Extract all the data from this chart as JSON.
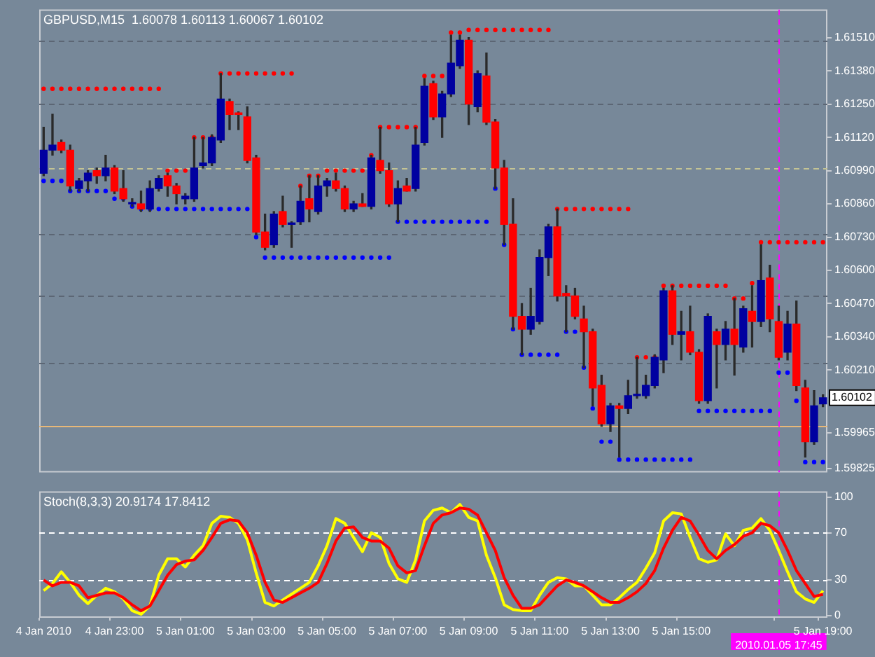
{
  "chart_data": [
    {
      "type": "candlestick",
      "title": "GBPUSD,M15  1.60078 1.60113 1.60067 1.60102",
      "categories": [
        "4 Jan 2010",
        null,
        null,
        null,
        null,
        null,
        null,
        null,
        "4 Jan 23:00",
        null,
        null,
        null,
        null,
        null,
        null,
        null,
        "5 Jan 01:00",
        null,
        null,
        null,
        null,
        null,
        null,
        null,
        "5 Jan 03:00",
        null,
        null,
        null,
        null,
        null,
        null,
        null,
        "5 Jan 05:00",
        null,
        null,
        null,
        null,
        null,
        null,
        null,
        "5 Jan 07:00",
        null,
        null,
        null,
        null,
        null,
        null,
        null,
        "5 Jan 09:00",
        null,
        null,
        null,
        null,
        null,
        null,
        null,
        "5 Jan 11:00",
        null,
        null,
        null,
        null,
        null,
        null,
        null,
        "5 Jan 13:00",
        null,
        null,
        null,
        null,
        null,
        null,
        null,
        "5 Jan 15:00",
        null,
        null,
        null,
        null,
        null,
        null,
        null,
        null,
        null,
        null,
        "2010.01.05 17:45",
        null,
        null,
        null,
        null,
        "5 Jan 19:00"
      ],
      "ohlc": [
        [
          1.6098,
          1.6116,
          1.6097,
          1.6107
        ],
        [
          1.6107,
          1.6121,
          1.6105,
          1.6109
        ],
        [
          1.611,
          1.6111,
          1.6106,
          1.6107
        ],
        [
          1.6107,
          1.6109,
          1.6091,
          1.6093
        ],
        [
          1.6092,
          1.6096,
          1.6091,
          1.6095
        ],
        [
          1.6095,
          1.6099,
          1.6091,
          1.6098
        ],
        [
          1.6099,
          1.61,
          1.6094,
          1.6097
        ],
        [
          1.6097,
          1.6105,
          1.6095,
          1.61
        ],
        [
          1.61,
          1.6101,
          1.609,
          1.6091
        ],
        [
          1.6092,
          1.6099,
          1.6087,
          1.6088
        ],
        [
          1.6086,
          1.6088,
          1.6085,
          1.6086
        ],
        [
          1.6086,
          1.6091,
          1.6083,
          1.6084
        ],
        [
          1.6084,
          1.6095,
          1.6083,
          1.6092
        ],
        [
          1.6092,
          1.6097,
          1.6091,
          1.6096
        ],
        [
          1.6097,
          1.6098,
          1.6089,
          1.6093
        ],
        [
          1.6093,
          1.6094,
          1.6086,
          1.609
        ],
        [
          1.6088,
          1.609,
          1.6086,
          1.6089
        ],
        [
          1.6088,
          1.6112,
          1.6087,
          1.61
        ],
        [
          1.6101,
          1.6112,
          1.61,
          1.6102
        ],
        [
          1.6102,
          1.6113,
          1.6101,
          1.6112
        ],
        [
          1.6111,
          1.6137,
          1.611,
          1.6127
        ],
        [
          1.6126,
          1.6127,
          1.6115,
          1.6121
        ],
        [
          1.6121,
          1.6122,
          1.6115,
          1.6121
        ],
        [
          1.612,
          1.6124,
          1.6102,
          1.6103
        ],
        [
          1.6104,
          1.6105,
          1.6074,
          1.6075
        ],
        [
          1.6075,
          1.6082,
          1.6068,
          1.6069
        ],
        [
          1.607,
          1.6083,
          1.6069,
          1.6082
        ],
        [
          1.6083,
          1.6089,
          1.6077,
          1.6078
        ],
        [
          1.6078,
          1.6079,
          1.6069,
          1.6078
        ],
        [
          1.6079,
          1.6093,
          1.6078,
          1.6087
        ],
        [
          1.6088,
          1.6097,
          1.6079,
          1.6084
        ],
        [
          1.6083,
          1.6097,
          1.6082,
          1.6093
        ],
        [
          1.6093,
          1.6096,
          1.6089,
          1.6095
        ],
        [
          1.6095,
          1.6098,
          1.6091,
          1.6092
        ],
        [
          1.6092,
          1.6093,
          1.6083,
          1.6084
        ],
        [
          1.6084,
          1.6087,
          1.6083,
          1.6086
        ],
        [
          1.6086,
          1.609,
          1.6085,
          1.6085
        ],
        [
          1.6085,
          1.6105,
          1.6084,
          1.6104
        ],
        [
          1.6103,
          1.6116,
          1.6098,
          1.6099
        ],
        [
          1.6099,
          1.6102,
          1.6085,
          1.6086
        ],
        [
          1.6086,
          1.6095,
          1.6079,
          1.6092
        ],
        [
          1.6093,
          1.6096,
          1.6091,
          1.6091
        ],
        [
          1.6092,
          1.6116,
          1.6091,
          1.6109
        ],
        [
          1.611,
          1.6135,
          1.6109,
          1.6132
        ],
        [
          1.6133,
          1.6134,
          1.6119,
          1.612
        ],
        [
          1.612,
          1.613,
          1.6112,
          1.6129
        ],
        [
          1.6129,
          1.6152,
          1.6128,
          1.6141
        ],
        [
          1.614,
          1.6152,
          1.6139,
          1.615
        ],
        [
          1.615,
          1.6151,
          1.6117,
          1.6125
        ],
        [
          1.6124,
          1.6138,
          1.6122,
          1.6137
        ],
        [
          1.6136,
          1.6145,
          1.6117,
          1.6118
        ],
        [
          1.6118,
          1.6119,
          1.6092,
          1.61
        ],
        [
          1.61,
          1.6103,
          1.607,
          1.6078
        ],
        [
          1.6078,
          1.6088,
          1.6037,
          1.6042
        ],
        [
          1.6042,
          1.6047,
          1.6027,
          1.6037
        ],
        [
          1.6037,
          1.6053,
          1.6035,
          1.6042
        ],
        [
          1.604,
          1.6068,
          1.6039,
          1.6065
        ],
        [
          1.6065,
          1.6078,
          1.6058,
          1.6077
        ],
        [
          1.6077,
          1.6084,
          1.6048,
          1.605
        ],
        [
          1.6051,
          1.6054,
          1.6036,
          1.605
        ],
        [
          1.605,
          1.6053,
          1.6041,
          1.6042
        ],
        [
          1.6041,
          1.6046,
          1.6022,
          1.6036
        ],
        [
          1.6036,
          1.6037,
          1.6007,
          1.6014
        ],
        [
          1.6015,
          1.6019,
          1.5999,
          1.6
        ],
        [
          1.6,
          1.6008,
          1.5997,
          1.6007
        ],
        [
          1.6007,
          1.6008,
          1.5987,
          1.6006
        ],
        [
          1.6006,
          1.6017,
          1.6004,
          1.6011
        ],
        [
          1.6011,
          1.6026,
          1.601,
          1.6011
        ],
        [
          1.6011,
          1.6019,
          1.601,
          1.6015
        ],
        [
          1.6015,
          1.6027,
          1.6014,
          1.6026
        ],
        [
          1.6025,
          1.6053,
          1.602,
          1.6052
        ],
        [
          1.6052,
          1.6054,
          1.6031,
          1.6035
        ],
        [
          1.6035,
          1.6044,
          1.6025,
          1.6036
        ],
        [
          1.6036,
          1.6046,
          1.6027,
          1.6028
        ],
        [
          1.6028,
          1.6029,
          1.6008,
          1.6009
        ],
        [
          1.6009,
          1.6043,
          1.6008,
          1.6042
        ],
        [
          1.6036,
          1.6037,
          1.6014,
          1.6031
        ],
        [
          1.6031,
          1.604,
          1.6025,
          1.6037
        ],
        [
          1.6037,
          1.6049,
          1.6019,
          1.6031
        ],
        [
          1.603,
          1.6046,
          1.6028,
          1.6045
        ],
        [
          1.6044,
          1.6054,
          1.603,
          1.604
        ],
        [
          1.604,
          1.607,
          1.6038,
          1.6056
        ],
        [
          1.6057,
          1.6062,
          1.6036,
          1.6041
        ],
        [
          1.604,
          1.6046,
          1.6025,
          1.6026
        ],
        [
          1.6028,
          1.6044,
          1.6025,
          1.6039
        ],
        [
          1.6039,
          1.6048,
          1.6013,
          1.6015
        ],
        [
          1.6014,
          1.6017,
          1.5987,
          1.5993
        ],
        [
          1.5993,
          1.6013,
          1.5992,
          1.6007
        ],
        [
          1.60078,
          1.60113,
          1.60067,
          1.60102
        ]
      ],
      "colors": [
        "#0000a0",
        "#0000a0",
        "#ff0000",
        "#ff0000",
        "#0000a0",
        "#0000a0",
        "#ff0000",
        "#0000a0",
        "#ff0000",
        "#ff0000",
        "#0000a0",
        "#ff0000",
        "#0000a0",
        "#0000a0",
        "#ff0000",
        "#ff0000",
        "#0000a0",
        "#0000a0",
        "#0000a0",
        "#0000a0",
        "#0000a0",
        "#ff0000",
        "#ff0000",
        "#ff0000",
        "#ff0000",
        "#ff0000",
        "#0000a0",
        "#ff0000",
        "#0000a0",
        "#0000a0",
        "#ff0000",
        "#0000a0",
        "#0000a0",
        "#ff0000",
        "#ff0000",
        "#0000a0",
        "#ff0000",
        "#0000a0",
        "#ff0000",
        "#ff0000",
        "#0000a0",
        "#ff0000",
        "#0000a0",
        "#0000a0",
        "#ff0000",
        "#0000a0",
        "#0000a0",
        "#0000a0",
        "#ff0000",
        "#0000a0",
        "#ff0000",
        "#ff0000",
        "#ff0000",
        "#ff0000",
        "#ff0000",
        "#0000a0",
        "#0000a0",
        "#0000a0",
        "#ff0000",
        "#ff0000",
        "#ff0000",
        "#ff0000",
        "#ff0000",
        "#ff0000",
        "#0000a0",
        "#ff0000",
        "#0000a0",
        "#0000a0",
        "#0000a0",
        "#0000a0",
        "#0000a0",
        "#ff0000",
        "#0000a0",
        "#ff0000",
        "#ff0000",
        "#0000a0",
        "#ff0000",
        "#0000a0",
        "#ff0000",
        "#0000a0",
        "#ff0000",
        "#0000a0",
        "#ff0000",
        "#ff0000",
        "#0000a0",
        "#ff0000",
        "#ff0000",
        "#0000a0",
        "#0000a0"
      ],
      "series": [
        {
          "type": "scatter",
          "color": "#ff0000",
          "values": [
            1.6131,
            1.6131,
            1.6131,
            1.6131,
            1.6131,
            1.6131,
            1.6131,
            1.6131,
            1.6131,
            1.6131,
            1.6131,
            1.6131,
            1.6131,
            1.6131,
            1.6099,
            1.6099,
            1.6099,
            1.6112,
            1.6112,
            1.6112,
            1.6137,
            1.6137,
            1.6137,
            1.6137,
            1.6137,
            1.6137,
            1.6137,
            1.6137,
            1.6137,
            1.6093,
            1.6097,
            1.6097,
            1.6099,
            1.6099,
            1.6099,
            1.6099,
            1.6099,
            1.6105,
            1.6116,
            1.6116,
            1.6116,
            1.6116,
            1.6116,
            1.6136,
            1.6136,
            1.6136,
            1.6153,
            1.6153,
            1.6154,
            1.6154,
            1.6154,
            1.6154,
            1.6154,
            1.6154,
            1.6154,
            1.6154,
            1.6154,
            1.6154,
            1.6084,
            1.6084,
            1.6084,
            1.6084,
            1.6084,
            1.6084,
            1.6084,
            1.6084,
            1.6084,
            1.6026,
            1.6026,
            1.6026,
            1.6054,
            1.6054,
            1.6054,
            1.6054,
            1.6054,
            1.6054,
            1.6054,
            1.6054,
            1.6049,
            1.6049,
            1.6055,
            1.6071,
            1.6071,
            1.6071,
            1.6071,
            1.6071,
            1.6071,
            1.6071,
            1.6071
          ]
        },
        {
          "type": "scatter",
          "color": "#0000ff",
          "values": [
            1.6095,
            1.6095,
            1.6095,
            1.6091,
            1.6091,
            1.6091,
            1.6091,
            1.6091,
            1.6088,
            1.6088,
            1.6085,
            1.6084,
            1.6084,
            1.6084,
            1.6084,
            1.6084,
            1.6084,
            1.6084,
            1.6084,
            1.6084,
            1.6084,
            1.6084,
            1.6084,
            1.6084,
            1.6073,
            1.6065,
            1.6065,
            1.6065,
            1.6065,
            1.6065,
            1.6065,
            1.6065,
            1.6065,
            1.6065,
            1.6065,
            1.6065,
            1.6065,
            1.6065,
            1.6065,
            1.6065,
            1.6079,
            1.6079,
            1.6079,
            1.6079,
            1.6079,
            1.6079,
            1.6079,
            1.6079,
            1.6079,
            1.6079,
            1.6079,
            1.6092,
            1.607,
            1.6037,
            1.6027,
            1.6027,
            1.6027,
            1.6027,
            1.6027,
            1.6036,
            1.6036,
            1.6022,
            1.6006,
            1.5993,
            1.5993,
            1.5986,
            1.5986,
            1.5986,
            1.5986,
            1.5986,
            1.5986,
            1.5986,
            1.5986,
            1.5986,
            1.6005,
            1.6005,
            1.6005,
            1.6005,
            1.6005,
            1.6005,
            1.6005,
            1.6005,
            1.6005,
            1.602,
            1.602,
            1.6009,
            1.5985,
            1.5985,
            1.5985
          ]
        }
      ],
      "marker": "circle",
      "ylim": [
        1.5981,
        1.6162
      ],
      "yticks": [
        {
          "value": 1.6151,
          "label": "1.61510"
        },
        {
          "value": 1.6138,
          "label": "1.61380"
        },
        {
          "value": 1.6125,
          "label": "1.61250"
        },
        {
          "value": 1.6112,
          "label": "1.61120"
        },
        {
          "value": 1.6099,
          "label": "1.60990"
        },
        {
          "value": 1.6086,
          "label": "1.60860"
        },
        {
          "value": 1.6073,
          "label": "1.60730"
        },
        {
          "value": 1.606,
          "label": "1.60600"
        },
        {
          "value": 1.6047,
          "label": "1.60470"
        },
        {
          "value": 1.6034,
          "label": "1.60340"
        },
        {
          "value": 1.6021,
          "label": "1.60210"
        },
        {
          "value": 1.59965,
          "label": "1.59965"
        },
        {
          "value": 1.59825,
          "label": "1.59825"
        }
      ],
      "tick_labels": "y",
      "ref_lines": [
        {
          "axis": "y",
          "value": 1.615,
          "color": "#5c6674",
          "line_style": "dashed"
        },
        {
          "axis": "y",
          "value": 1.6125,
          "color": "#5c6674",
          "line_style": "dashed"
        },
        {
          "axis": "y",
          "value": 1.61,
          "color": "#c4c494",
          "line_style": "dashed"
        },
        {
          "axis": "y",
          "value": 1.6074,
          "color": "#5c6674",
          "line_style": "dashed"
        },
        {
          "axis": "y",
          "value": 1.605,
          "color": "#5c6674",
          "line_style": "dashed"
        },
        {
          "axis": "y",
          "value": 1.6024,
          "color": "#5c6674",
          "line_style": "dashed"
        },
        {
          "axis": "y",
          "value": 1.5999,
          "color": "#e8b878",
          "line_style": "solid"
        },
        {
          "axis": "x",
          "value": "2010.01.05 17:45",
          "color": "#ff00ff",
          "line_style": "dashed"
        }
      ],
      "annotations": [
        "1.60102"
      ]
    },
    {
      "type": "line",
      "title": "Stoch(8,3,3) 20.9174 17.8412",
      "categories": [
        "4 Jan 2010",
        null,
        null,
        null,
        null,
        null,
        null,
        null,
        "4 Jan 23:00",
        null,
        null,
        null,
        null,
        null,
        null,
        null,
        "5 Jan 01:00",
        null,
        null,
        null,
        null,
        null,
        null,
        null,
        "5 Jan 03:00",
        null,
        null,
        null,
        null,
        null,
        null,
        null,
        "5 Jan 05:00",
        null,
        null,
        null,
        null,
        null,
        null,
        null,
        "5 Jan 07:00",
        null,
        null,
        null,
        null,
        null,
        null,
        null,
        "5 Jan 09:00",
        null,
        null,
        null,
        null,
        null,
        null,
        null,
        "5 Jan 11:00",
        null,
        null,
        null,
        null,
        null,
        null,
        null,
        "5 Jan 13:00",
        null,
        null,
        null,
        null,
        null,
        null,
        null,
        "5 Jan 15:00",
        null,
        null,
        null,
        null,
        null,
        null,
        null,
        null,
        null,
        null,
        "2010.01.05 17:45",
        null,
        null,
        null,
        null,
        "5 Jan 19:00"
      ],
      "series": [
        {
          "color": "#ff0000",
          "values": [
            30,
            25,
            28,
            28,
            25,
            15,
            17,
            19,
            19,
            15,
            9,
            4,
            8,
            21,
            34,
            43,
            46,
            47,
            55,
            66,
            78,
            81,
            80,
            70,
            51,
            28,
            13,
            11,
            15,
            19,
            23,
            28,
            44,
            63,
            74,
            75,
            66,
            63,
            63,
            57,
            42,
            36,
            38,
            59,
            78,
            85,
            87,
            91,
            90,
            85,
            70,
            55,
            32,
            17,
            6,
            6,
            9,
            17,
            25,
            30,
            28,
            25,
            20,
            15,
            11,
            11,
            15,
            20,
            27,
            38,
            57,
            72,
            83,
            80,
            68,
            55,
            48,
            55,
            60,
            67,
            70,
            78,
            76,
            70,
            55,
            38,
            27,
            16,
            17.8412
          ]
        },
        {
          "color": "#ffff00",
          "values": [
            21,
            27,
            37,
            28,
            17,
            10,
            17,
            23,
            20,
            14,
            4,
            1,
            8,
            34,
            48,
            48,
            41,
            51,
            59,
            78,
            84,
            83,
            78,
            64,
            36,
            11,
            8,
            13,
            18,
            23,
            28,
            42,
            59,
            82,
            78,
            66,
            54,
            70,
            66,
            44,
            31,
            28,
            47,
            80,
            89,
            91,
            87,
            94,
            83,
            80,
            51,
            32,
            9,
            5,
            4,
            4,
            17,
            28,
            32,
            31,
            25,
            25,
            17,
            9,
            9,
            15,
            22,
            28,
            40,
            53,
            80,
            87,
            86,
            66,
            48,
            45,
            47,
            69,
            59,
            72,
            74,
            82,
            72,
            55,
            37,
            20,
            14,
            11,
            20.9174
          ]
        }
      ],
      "ylim": [
        -2,
        105
      ],
      "yticks": [
        0,
        30,
        70,
        100
      ],
      "ref_lines": [
        {
          "axis": "y",
          "value": 70,
          "color": "#ffffff",
          "line_style": "dashed"
        },
        {
          "axis": "y",
          "value": 30,
          "color": "#ffffff",
          "line_style": "dashed"
        },
        {
          "axis": "x",
          "value": "2010.01.05 17:45",
          "color": "#ff00ff",
          "line_style": "dashed"
        }
      ]
    }
  ]
}
